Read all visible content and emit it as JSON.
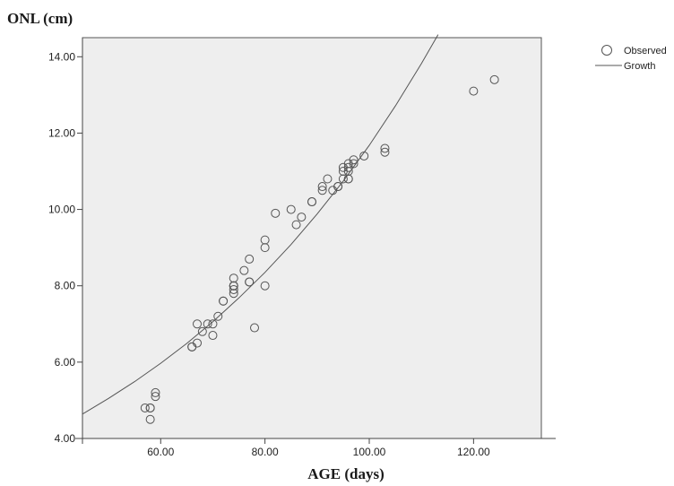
{
  "chart_data": {
    "type": "scatter",
    "ylabel": "ONL (cm)",
    "xlabel": "AGE (days)",
    "xlim": [
      45,
      133
    ],
    "ylim": [
      4.0,
      14.5
    ],
    "xticks": [
      60,
      80,
      100,
      120
    ],
    "xtick_labels": [
      "60.00",
      "80.00",
      "100.00",
      "120.00"
    ],
    "yticks": [
      4,
      6,
      8,
      10,
      12,
      14
    ],
    "ytick_labels": [
      "4.00",
      "6.00",
      "8.00",
      "10.00",
      "12.00",
      "14.00"
    ],
    "grid": false,
    "legend_position": "top-right",
    "background_color": "#eeeeee",
    "series": [
      {
        "name": "Observed",
        "kind": "scatter",
        "x": [
          57,
          58,
          58,
          58,
          59,
          59,
          66,
          66,
          67,
          67,
          68,
          69,
          70,
          70,
          71,
          72,
          72,
          74,
          74,
          74,
          74,
          74,
          74,
          76,
          77,
          77,
          77,
          78,
          80,
          80,
          80,
          82,
          85,
          86,
          87,
          89,
          89,
          91,
          91,
          92,
          93,
          94,
          94,
          95,
          95,
          95,
          96,
          96,
          96,
          96,
          96,
          97,
          97,
          99,
          103,
          103,
          120,
          124
        ],
        "y": [
          4.8,
          4.8,
          4.5,
          4.8,
          5.1,
          5.2,
          6.4,
          6.4,
          7.0,
          6.5,
          6.8,
          7.0,
          6.7,
          7.0,
          7.2,
          7.6,
          7.6,
          7.8,
          7.9,
          8.0,
          8.0,
          8.2,
          8.0,
          8.4,
          8.1,
          8.1,
          8.7,
          6.9,
          8.0,
          9.0,
          9.2,
          9.9,
          10.0,
          9.6,
          9.8,
          10.2,
          10.2,
          10.5,
          10.6,
          10.8,
          10.5,
          10.6,
          10.6,
          10.8,
          11.0,
          11.1,
          10.8,
          11.0,
          11.1,
          11.2,
          10.8,
          11.2,
          11.3,
          11.4,
          11.5,
          11.6,
          13.1,
          13.4
        ]
      },
      {
        "name": "Growth",
        "kind": "line",
        "x": [
          45,
          50,
          55,
          60,
          65,
          70,
          75,
          80,
          85,
          90,
          95,
          100,
          105,
          110,
          113.2
        ],
        "y": [
          4.64,
          5.05,
          5.49,
          5.97,
          6.49,
          7.06,
          7.68,
          8.35,
          9.08,
          9.88,
          10.74,
          11.68,
          12.71,
          13.82,
          14.58
        ]
      }
    ]
  }
}
